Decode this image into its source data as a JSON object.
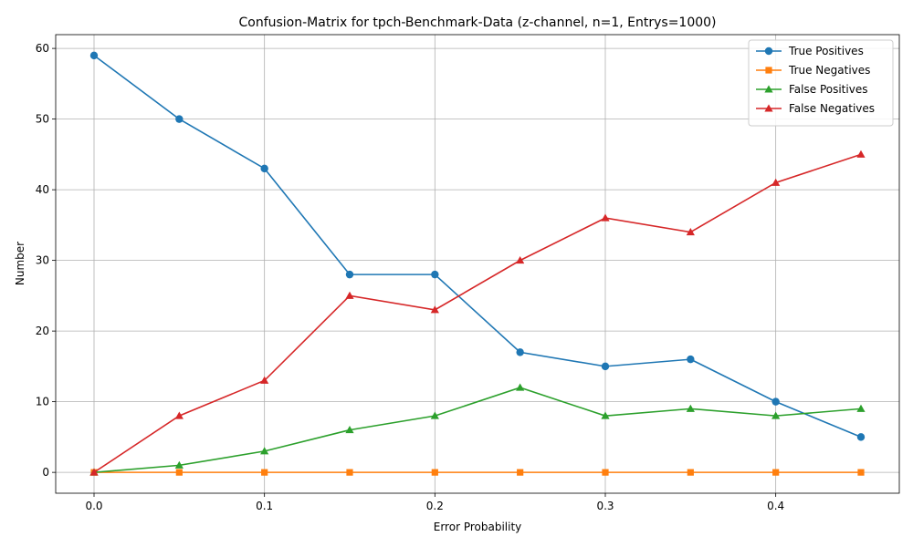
{
  "chart_data": {
    "type": "line",
    "title": "Confusion-Matrix for tpch-Benchmark-Data (z-channel, n=1, Entrys=1000)",
    "xlabel": "Error Probability",
    "ylabel": "Number",
    "x": [
      0.0,
      0.05,
      0.1,
      0.15,
      0.2,
      0.25,
      0.3,
      0.35,
      0.4,
      0.45
    ],
    "xlim": [
      -0.0225,
      0.4725
    ],
    "ylim": [
      -2.95,
      61.95
    ],
    "xticks": [
      0.0,
      0.1,
      0.2,
      0.3,
      0.4
    ],
    "xtick_labels": [
      "0.0",
      "0.1",
      "0.2",
      "0.3",
      "0.4"
    ],
    "yticks": [
      0,
      10,
      20,
      30,
      40,
      50,
      60
    ],
    "ytick_labels": [
      "0",
      "10",
      "20",
      "30",
      "40",
      "50",
      "60"
    ],
    "grid": true,
    "legend_position": "top-right",
    "series": [
      {
        "name": "True Positives",
        "color": "#1f77b4",
        "marker": "circle",
        "values": [
          59,
          50,
          43,
          28,
          28,
          17,
          15,
          16,
          10,
          5
        ]
      },
      {
        "name": "True Negatives",
        "color": "#ff7f0e",
        "marker": "square",
        "values": [
          0,
          0,
          0,
          0,
          0,
          0,
          0,
          0,
          0,
          0
        ]
      },
      {
        "name": "False Positives",
        "color": "#2ca02c",
        "marker": "triangle",
        "values": [
          0,
          1,
          3,
          6,
          8,
          12,
          8,
          9,
          8,
          9
        ]
      },
      {
        "name": "False Negatives",
        "color": "#d62728",
        "marker": "triangle",
        "values": [
          0,
          8,
          13,
          25,
          23,
          30,
          36,
          34,
          41,
          45
        ]
      }
    ]
  }
}
